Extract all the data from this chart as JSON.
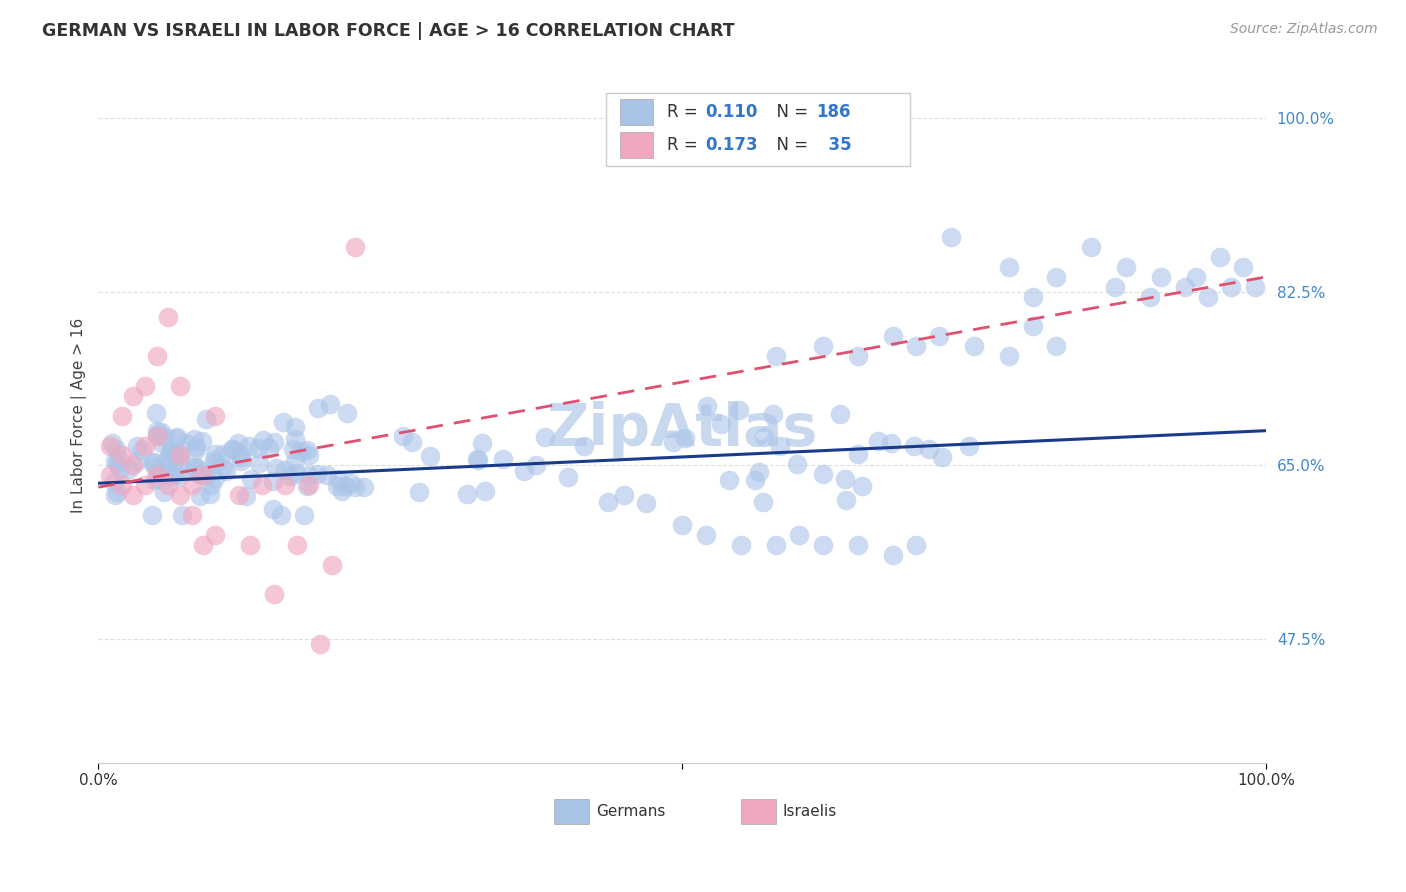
{
  "title": "GERMAN VS ISRAELI IN LABOR FORCE | AGE > 16 CORRELATION CHART",
  "source": "Source: ZipAtlas.com",
  "ylabel": "In Labor Force | Age > 16",
  "german_color": "#aac4e8",
  "israeli_color": "#f0a8c0",
  "trendline_german_color": "#1a3a8a",
  "trendline_israeli_color": "#e05070",
  "watermark_color": "#c8d8ee",
  "background_color": "#ffffff",
  "grid_color": "#d8d8d8",
  "ytick_color": "#4488cc",
  "title_color": "#333333",
  "source_color": "#999999",
  "R_german": "0.110",
  "N_german": "186",
  "R_israeli": "0.173",
  "N_israeli": "35",
  "xlim": [
    0.0,
    1.0
  ],
  "ylim": [
    0.35,
    1.05
  ],
  "yticks": [
    0.475,
    0.65,
    0.825,
    1.0
  ],
  "ytick_labels": [
    "47.5%",
    "65.0%",
    "82.5%",
    "100.0%"
  ]
}
